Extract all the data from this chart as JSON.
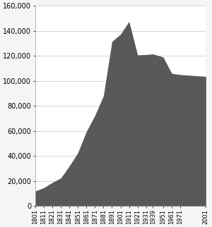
{
  "years": [
    1801,
    1811,
    1821,
    1831,
    1841,
    1851,
    1861,
    1871,
    1881,
    1891,
    1901,
    1911,
    1921,
    1931,
    1939,
    1951,
    1961,
    1971,
    2001
  ],
  "population": [
    12024,
    14668,
    18831,
    22382,
    31977,
    42595,
    59546,
    72357,
    88024,
    131463,
    137246,
    147483,
    120748,
    121000,
    121500,
    119000,
    106000,
    105000,
    103544
  ],
  "fill_color": "#595959",
  "bg_color": "#f5f5f5",
  "plot_bg_color": "#ffffff",
  "ylim": [
    0,
    160000
  ],
  "ytick_step": 20000,
  "figsize": [
    3.0,
    3.22
  ],
  "dpi": 100
}
